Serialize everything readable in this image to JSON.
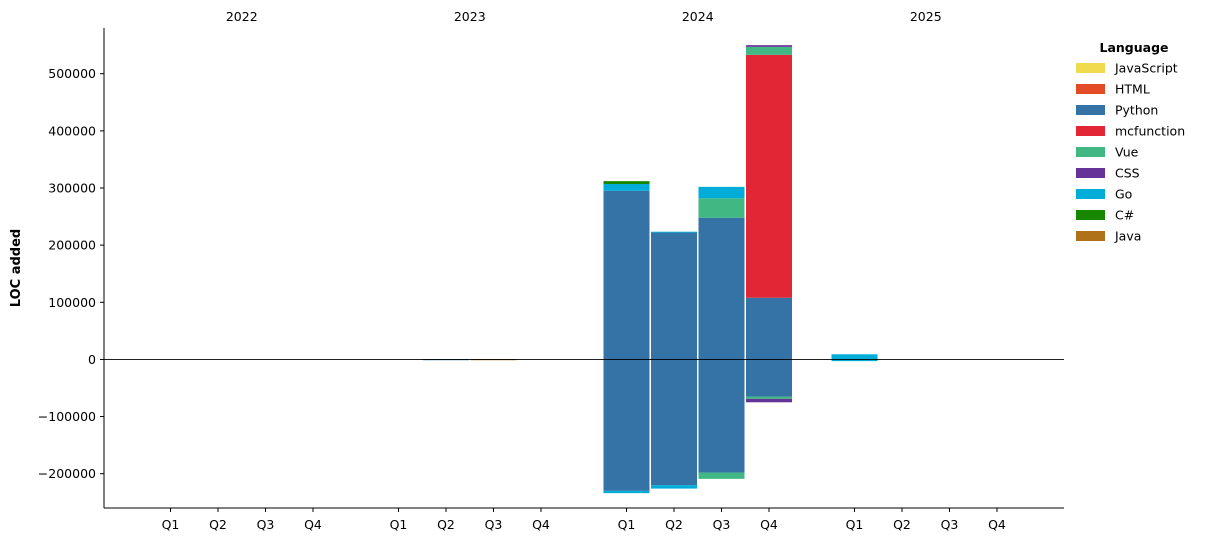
{
  "chart_data": {
    "type": "bar",
    "stacked": true,
    "title": "",
    "xlabel": "",
    "ylabel": "LOC added",
    "ylim": [
      -260000,
      580000
    ],
    "yticks": [
      -200000,
      -100000,
      0,
      100000,
      200000,
      300000,
      400000,
      500000
    ],
    "ytick_labels": [
      "−200000",
      "−100000",
      "0",
      "100000",
      "200000",
      "300000",
      "400000",
      "500000"
    ],
    "years": [
      "2022",
      "2023",
      "2024",
      "2025"
    ],
    "quarters": [
      "Q1",
      "Q2",
      "Q3",
      "Q4"
    ],
    "legend": {
      "title": "Language",
      "placement": "upper-right-outside",
      "entries": [
        {
          "name": "JavaScript",
          "color": "#f0db4f"
        },
        {
          "name": "HTML",
          "color": "#e34c26"
        },
        {
          "name": "Python",
          "color": "#3572a5"
        },
        {
          "name": "mcfunction",
          "color": "#e32636"
        },
        {
          "name": "Vue",
          "color": "#41b883"
        },
        {
          "name": "CSS",
          "color": "#663399"
        },
        {
          "name": "Go",
          "color": "#00add8"
        },
        {
          "name": "C#",
          "color": "#178600"
        },
        {
          "name": "Java",
          "color": "#b07219"
        }
      ]
    },
    "bars": [
      {
        "year": "2023",
        "quarter": "Q2",
        "positive": [
          {
            "lang": "Python",
            "value": 500
          }
        ],
        "negative": [
          {
            "lang": "Python",
            "value": -500
          }
        ]
      },
      {
        "year": "2023",
        "quarter": "Q3",
        "positive": [
          {
            "lang": "Java",
            "value": 500
          }
        ],
        "negative": [
          {
            "lang": "Java",
            "value": -500
          }
        ]
      },
      {
        "year": "2024",
        "quarter": "Q1",
        "positive": [
          {
            "lang": "Python",
            "value": 295000
          },
          {
            "lang": "Go",
            "value": 12000
          },
          {
            "lang": "C#",
            "value": 5000
          }
        ],
        "negative": [
          {
            "lang": "Python",
            "value": -230000
          },
          {
            "lang": "Go",
            "value": -4000
          }
        ]
      },
      {
        "year": "2024",
        "quarter": "Q2",
        "positive": [
          {
            "lang": "Python",
            "value": 222000
          },
          {
            "lang": "Go",
            "value": 1500
          }
        ],
        "negative": [
          {
            "lang": "Python",
            "value": -220000
          },
          {
            "lang": "Go",
            "value": -6000
          }
        ]
      },
      {
        "year": "2024",
        "quarter": "Q3",
        "positive": [
          {
            "lang": "Python",
            "value": 248000
          },
          {
            "lang": "Vue",
            "value": 34000
          },
          {
            "lang": "Go",
            "value": 20000
          }
        ],
        "negative": [
          {
            "lang": "Python",
            "value": -198000
          },
          {
            "lang": "Vue",
            "value": -11000
          }
        ]
      },
      {
        "year": "2024",
        "quarter": "Q4",
        "positive": [
          {
            "lang": "Python",
            "value": 108000
          },
          {
            "lang": "mcfunction",
            "value": 425000
          },
          {
            "lang": "Vue",
            "value": 14000
          },
          {
            "lang": "CSS",
            "value": 3000
          }
        ],
        "negative": [
          {
            "lang": "Python",
            "value": -65000
          },
          {
            "lang": "Vue",
            "value": -4000
          },
          {
            "lang": "CSS",
            "value": -6000
          }
        ]
      },
      {
        "year": "2025",
        "quarter": "Q1",
        "positive": [
          {
            "lang": "Go",
            "value": 9000
          }
        ],
        "negative": [
          {
            "lang": "Go",
            "value": -3000
          }
        ]
      }
    ]
  }
}
